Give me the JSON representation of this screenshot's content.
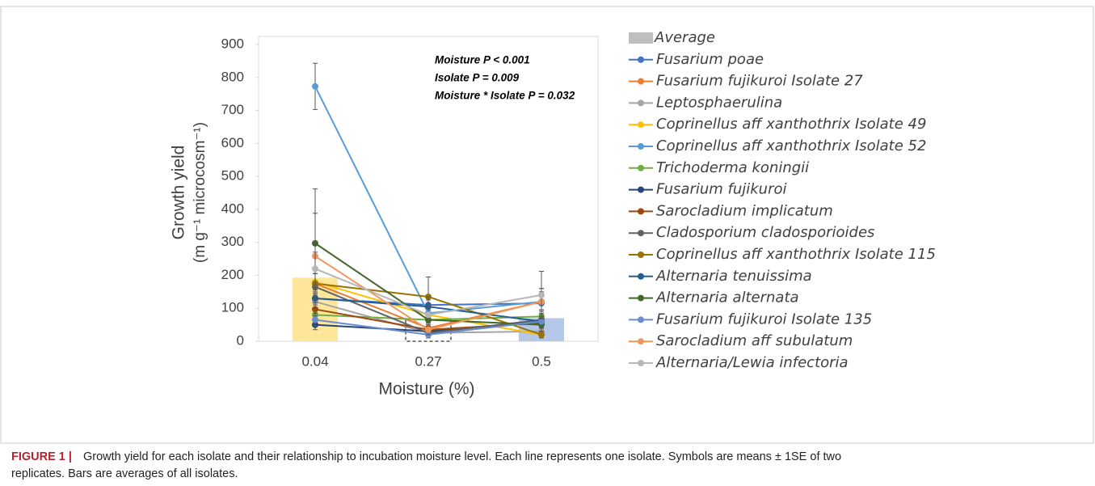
{
  "chart_data": {
    "type": "bar-line",
    "categories": [
      "0.04",
      "0.27",
      "0.5"
    ],
    "x_label": "Moisture (%)",
    "y_label": [
      "Growth yield",
      "(m g⁻¹ microcosm⁻¹)"
    ],
    "ylim": [
      0,
      900
    ],
    "yticks": [
      0,
      100,
      200,
      300,
      400,
      500,
      600,
      700,
      800,
      900
    ],
    "annotations": [
      "Moisture P < 0.001",
      "Isolate P = 0.009",
      "Moisture * Isolate P = 0.032"
    ],
    "bar": {
      "name": "Average",
      "color": "#bfbfbf",
      "colors": [
        "#ffe699",
        "#ffffff",
        "#b4c7e7"
      ],
      "values": [
        193,
        65,
        70
      ]
    },
    "series": [
      {
        "name": "Fusarium poae",
        "color": "#4472c4",
        "values": [
          130,
          110,
          115
        ],
        "errors": [
          20,
          15,
          20
        ]
      },
      {
        "name": "Fusarium fujikuroi Isolate 27",
        "color": "#ed7d31",
        "values": [
          175,
          40,
          120
        ],
        "errors": [
          30,
          15,
          40
        ]
      },
      {
        "name": "Leptosphaerulina",
        "color": "#a5a5a5",
        "values": [
          120,
          25,
          30
        ],
        "errors": [
          20,
          10,
          10
        ]
      },
      {
        "name": "Coprinellus aff xanthothrix Isolate 49",
        "color": "#ffc000",
        "values": [
          180,
          80,
          20
        ],
        "errors": [
          25,
          20,
          10
        ]
      },
      {
        "name": "Coprinellus aff xanthothrix Isolate 52",
        "color": "#5b9bd5",
        "values": [
          773,
          85,
          120
        ],
        "errors": [
          70,
          30,
          40
        ]
      },
      {
        "name": "Trichoderma koningii",
        "color": "#70ad47",
        "values": [
          80,
          65,
          75
        ],
        "errors": [
          15,
          15,
          20
        ]
      },
      {
        "name": "Fusarium fujikuroi",
        "color": "#264478",
        "values": [
          50,
          30,
          60
        ],
        "errors": [
          15,
          10,
          15
        ]
      },
      {
        "name": "Sarocladium implicatum",
        "color": "#9e480e",
        "values": [
          97,
          35,
          55
        ],
        "errors": [
          20,
          10,
          15
        ]
      },
      {
        "name": "Cladosporium cladosporioides",
        "color": "#636363",
        "values": [
          165,
          25,
          65
        ],
        "errors": [
          40,
          10,
          20
        ]
      },
      {
        "name": "Coprinellus aff xanthothrix Isolate 115",
        "color": "#997300",
        "values": [
          175,
          135,
          20
        ],
        "errors": [
          30,
          60,
          10
        ]
      },
      {
        "name": "Alternaria tenuissima",
        "color": "#255e91",
        "values": [
          130,
          105,
          60
        ],
        "errors": [
          30,
          30,
          20
        ]
      },
      {
        "name": "Alternaria alternata",
        "color": "#43682b",
        "values": [
          297,
          65,
          50
        ],
        "errors": [
          165,
          20,
          20
        ]
      },
      {
        "name": "Fusarium fujikuroi Isolate 135",
        "color": "#698ed0",
        "values": [
          65,
          20,
          60
        ],
        "errors": [
          20,
          10,
          15
        ]
      },
      {
        "name": "Sarocladium aff subulatum",
        "color": "#f1975a",
        "values": [
          258,
          35,
          120
        ],
        "errors": [
          130,
          15,
          30
        ]
      },
      {
        "name": "Alternaria/Lewia infectoria",
        "color": "#b7b7b7",
        "values": [
          220,
          80,
          140
        ],
        "errors": [
          50,
          25,
          72
        ]
      }
    ]
  },
  "caption": {
    "label": "FIGURE 1  |",
    "lines": [
      "Growth yield for each isolate and their relationship to incubation moisture level. Each line represents one isolate. Symbols are means ± 1SE of two",
      "replicates. Bars are averages of all isolates."
    ]
  }
}
